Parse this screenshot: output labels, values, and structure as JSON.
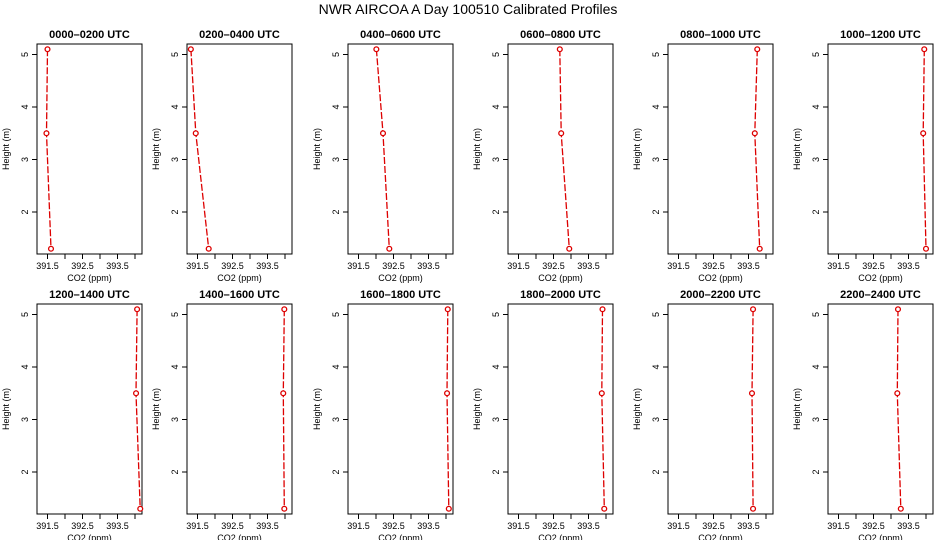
{
  "page": {
    "title": "NWR AIRCOA A  Day 100510  Calibrated Profiles"
  },
  "style": {
    "line_color": "#dd0000",
    "axis_color": "#000000"
  },
  "chart_data": [
    {
      "type": "line",
      "title": "0000–0200 UTC",
      "xlabel": "CO2 (ppm)",
      "ylabel": "Height (m)",
      "xlim": [
        391.2,
        394.2
      ],
      "ylim": [
        1.2,
        5.2
      ],
      "x_ticks": [
        "391.5",
        "392.5",
        "393.5"
      ],
      "y_ticks": [
        "2",
        "3",
        "4",
        "5"
      ],
      "grid": false,
      "series": [
        {
          "x": [
            391.5,
            391.47,
            391.6
          ],
          "y": [
            5.1,
            3.5,
            1.3
          ]
        }
      ]
    },
    {
      "type": "line",
      "title": "0200–0400 UTC",
      "xlabel": "CO2 (ppm)",
      "ylabel": "Height (m)",
      "xlim": [
        391.2,
        394.2
      ],
      "ylim": [
        1.2,
        5.2
      ],
      "x_ticks": [
        "391.5",
        "392.5",
        "393.5"
      ],
      "y_ticks": [
        "2",
        "3",
        "4",
        "5"
      ],
      "grid": false,
      "series": [
        {
          "x": [
            391.31,
            391.45,
            391.82
          ],
          "y": [
            5.1,
            3.5,
            1.3
          ]
        }
      ]
    },
    {
      "type": "line",
      "title": "0400–0600 UTC",
      "xlabel": "CO2 (ppm)",
      "ylabel": "Height (m)",
      "xlim": [
        391.2,
        394.2
      ],
      "ylim": [
        1.2,
        5.2
      ],
      "x_ticks": [
        "391.5",
        "392.5",
        "393.5"
      ],
      "y_ticks": [
        "2",
        "3",
        "4",
        "5"
      ],
      "grid": false,
      "series": [
        {
          "x": [
            392.01,
            392.2,
            392.38
          ],
          "y": [
            5.1,
            3.5,
            1.3
          ]
        }
      ]
    },
    {
      "type": "line",
      "title": "0600–0800 UTC",
      "xlabel": "CO2 (ppm)",
      "ylabel": "Height (m)",
      "xlim": [
        391.2,
        394.2
      ],
      "ylim": [
        1.2,
        5.2
      ],
      "x_ticks": [
        "391.5",
        "392.5",
        "393.5"
      ],
      "y_ticks": [
        "2",
        "3",
        "4",
        "5"
      ],
      "grid": false,
      "series": [
        {
          "x": [
            392.68,
            392.72,
            392.95
          ],
          "y": [
            5.1,
            3.5,
            1.3
          ]
        }
      ]
    },
    {
      "type": "line",
      "title": "0800–1000 UTC",
      "xlabel": "CO2 (ppm)",
      "ylabel": "Height (m)",
      "xlim": [
        391.2,
        394.2
      ],
      "ylim": [
        1.2,
        5.2
      ],
      "x_ticks": [
        "391.5",
        "392.5",
        "393.5"
      ],
      "y_ticks": [
        "2",
        "3",
        "4",
        "5"
      ],
      "grid": false,
      "series": [
        {
          "x": [
            393.75,
            393.68,
            393.82
          ],
          "y": [
            5.1,
            3.5,
            1.3
          ]
        }
      ]
    },
    {
      "type": "line",
      "title": "1000–1200 UTC",
      "xlabel": "CO2 (ppm)",
      "ylabel": "Height (m)",
      "xlim": [
        391.2,
        394.2
      ],
      "ylim": [
        1.2,
        5.2
      ],
      "x_ticks": [
        "391.5",
        "392.5",
        "393.5"
      ],
      "y_ticks": [
        "2",
        "3",
        "4",
        "5"
      ],
      "grid": false,
      "series": [
        {
          "x": [
            393.95,
            393.92,
            394.0
          ],
          "y": [
            5.1,
            3.5,
            1.3
          ]
        }
      ]
    },
    {
      "type": "line",
      "title": "1200–1400 UTC",
      "xlabel": "CO2 (ppm)",
      "ylabel": "Height (m)",
      "xlim": [
        391.2,
        394.2
      ],
      "ylim": [
        1.2,
        5.2
      ],
      "x_ticks": [
        "391.5",
        "392.5",
        "393.5"
      ],
      "y_ticks": [
        "2",
        "3",
        "4",
        "5"
      ],
      "grid": false,
      "series": [
        {
          "x": [
            394.06,
            394.03,
            394.15
          ],
          "y": [
            5.1,
            3.5,
            1.3
          ]
        }
      ]
    },
    {
      "type": "line",
      "title": "1400–1600 UTC",
      "xlabel": "CO2 (ppm)",
      "ylabel": "Height (m)",
      "xlim": [
        391.2,
        394.2
      ],
      "ylim": [
        1.2,
        5.2
      ],
      "x_ticks": [
        "391.5",
        "392.5",
        "393.5"
      ],
      "y_ticks": [
        "2",
        "3",
        "4",
        "5"
      ],
      "grid": false,
      "series": [
        {
          "x": [
            393.98,
            393.95,
            393.98
          ],
          "y": [
            5.1,
            3.5,
            1.3
          ]
        }
      ]
    },
    {
      "type": "line",
      "title": "1600–1800 UTC",
      "xlabel": "CO2 (ppm)",
      "ylabel": "Height (m)",
      "xlim": [
        391.2,
        394.2
      ],
      "ylim": [
        1.2,
        5.2
      ],
      "x_ticks": [
        "391.5",
        "392.5",
        "393.5"
      ],
      "y_ticks": [
        "2",
        "3",
        "4",
        "5"
      ],
      "grid": false,
      "series": [
        {
          "x": [
            394.05,
            394.03,
            394.08
          ],
          "y": [
            5.1,
            3.5,
            1.3
          ]
        }
      ]
    },
    {
      "type": "line",
      "title": "1800–2000 UTC",
      "xlabel": "CO2 (ppm)",
      "ylabel": "Height (m)",
      "xlim": [
        391.2,
        394.2
      ],
      "ylim": [
        1.2,
        5.2
      ],
      "x_ticks": [
        "391.5",
        "392.5",
        "393.5"
      ],
      "y_ticks": [
        "2",
        "3",
        "4",
        "5"
      ],
      "grid": false,
      "series": [
        {
          "x": [
            393.9,
            393.88,
            393.95
          ],
          "y": [
            5.1,
            3.5,
            1.3
          ]
        }
      ]
    },
    {
      "type": "line",
      "title": "2000–2200 UTC",
      "xlabel": "CO2 (ppm)",
      "ylabel": "Height (m)",
      "xlim": [
        391.2,
        394.2
      ],
      "ylim": [
        1.2,
        5.2
      ],
      "x_ticks": [
        "391.5",
        "392.5",
        "393.5"
      ],
      "y_ticks": [
        "2",
        "3",
        "4",
        "5"
      ],
      "grid": false,
      "series": [
        {
          "x": [
            393.63,
            393.6,
            393.63
          ],
          "y": [
            5.1,
            3.5,
            1.3
          ]
        }
      ]
    },
    {
      "type": "line",
      "title": "2200–2400 UTC",
      "xlabel": "CO2 (ppm)",
      "ylabel": "Height (m)",
      "xlim": [
        391.2,
        394.2
      ],
      "ylim": [
        1.2,
        5.2
      ],
      "x_ticks": [
        "391.5",
        "392.5",
        "393.5"
      ],
      "y_ticks": [
        "2",
        "3",
        "4",
        "5"
      ],
      "grid": false,
      "series": [
        {
          "x": [
            393.2,
            393.18,
            393.28
          ],
          "y": [
            5.1,
            3.5,
            1.3
          ]
        }
      ]
    }
  ]
}
